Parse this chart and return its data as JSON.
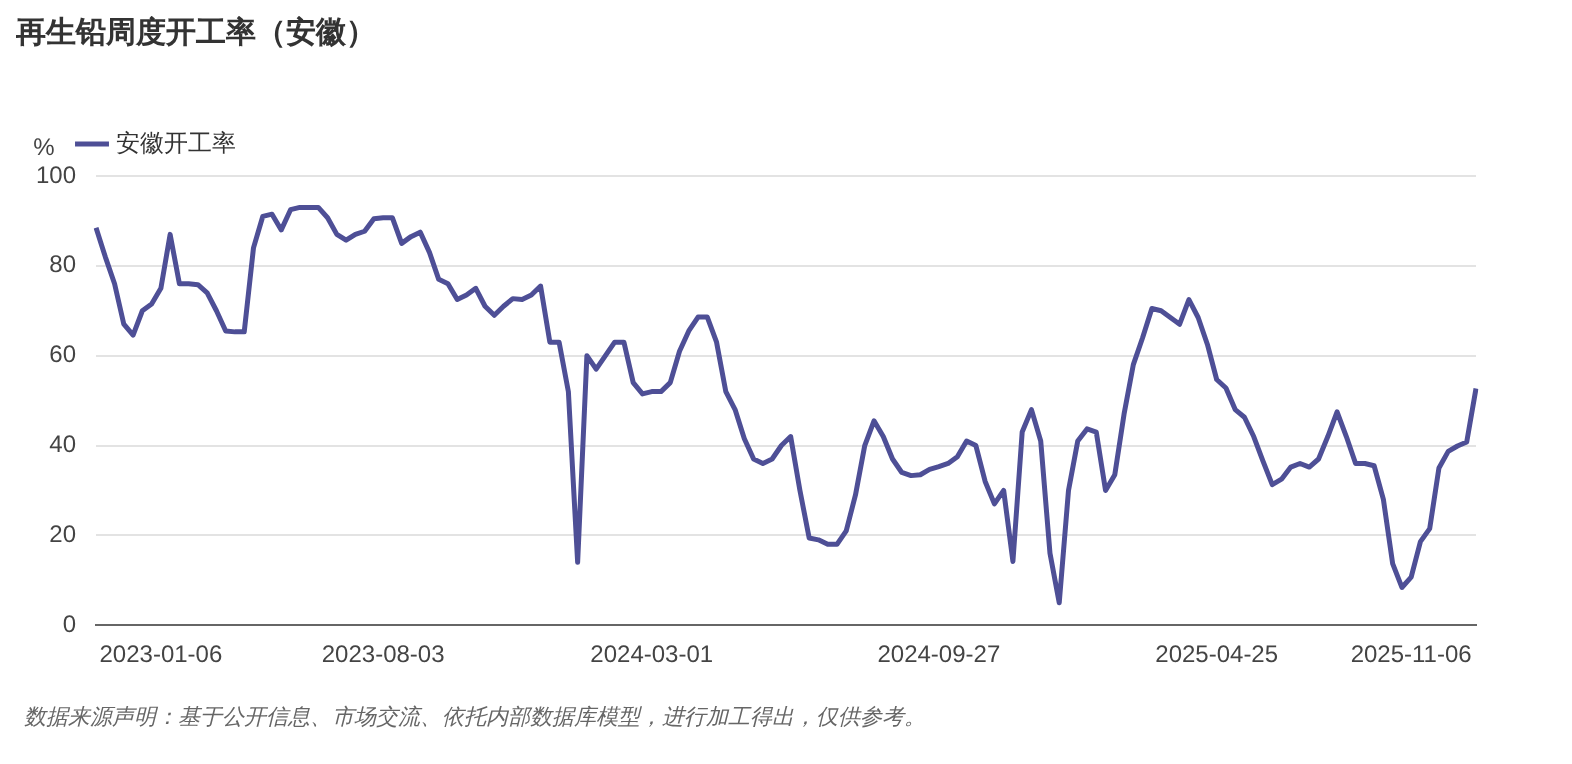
{
  "chart_data": {
    "type": "line",
    "title": "再生铅周度开工率（安徽）",
    "ylabel": "%",
    "categories": [
      null,
      null,
      null,
      null,
      null,
      null,
      null,
      "2023-01-06",
      null,
      null,
      null,
      null,
      null,
      null,
      null,
      null,
      null,
      null,
      null,
      null,
      null,
      null,
      null,
      null,
      null,
      null,
      null,
      null,
      null,
      null,
      null,
      "2023-08-03",
      null,
      null,
      null,
      null,
      null,
      null,
      null,
      null,
      null,
      null,
      null,
      null,
      null,
      null,
      null,
      null,
      null,
      null,
      null,
      null,
      null,
      null,
      null,
      null,
      null,
      null,
      null,
      null,
      "2024-03-01",
      null,
      null,
      null,
      null,
      null,
      null,
      null,
      null,
      null,
      null,
      null,
      null,
      null,
      null,
      null,
      null,
      null,
      null,
      null,
      null,
      null,
      null,
      null,
      null,
      null,
      null,
      null,
      null,
      null,
      null,
      "2024-09-27",
      null,
      null,
      null,
      null,
      null,
      null,
      null,
      null,
      null,
      null,
      null,
      null,
      null,
      null,
      null,
      null,
      null,
      null,
      null,
      null,
      null,
      null,
      null,
      null,
      null,
      null,
      null,
      null,
      null,
      "2025-04-25",
      null,
      null,
      null,
      null,
      null,
      null,
      null,
      null,
      null,
      null,
      null,
      null,
      null,
      null,
      null,
      null,
      null,
      null,
      null,
      null,
      "2025-11-06",
      null,
      null,
      null,
      null,
      null,
      null,
      null
    ],
    "series": [
      {
        "name": "安徽开工率",
        "color": "#4e4f96",
        "values": [
          88.5,
          82,
          76,
          67,
          64.6,
          70,
          71.5,
          75,
          87,
          76,
          76,
          75.8,
          74,
          70,
          65.5,
          65.3,
          65.3,
          84,
          91,
          91.5,
          88,
          92.5,
          93,
          93,
          93,
          90.7,
          87,
          85.7,
          87,
          87.7,
          90.5,
          90.7,
          90.7,
          85,
          86.5,
          87.5,
          83,
          77,
          76,
          72.5,
          73.5,
          75,
          71,
          69,
          71,
          72.7,
          72.5,
          73.5,
          75.5,
          63,
          63,
          52,
          14,
          60,
          57,
          60,
          63,
          63,
          54,
          51.5,
          52,
          52,
          54,
          61,
          65.5,
          68.6,
          68.6,
          63,
          52,
          48,
          41.5,
          37,
          36,
          37,
          40,
          42,
          30,
          19.4,
          19,
          18,
          18,
          21,
          29,
          40,
          45.5,
          42,
          37,
          34,
          33.3,
          33.5,
          34.7,
          35.3,
          36,
          37.5,
          41,
          40,
          32,
          27,
          30,
          14.2,
          43,
          48,
          41,
          16,
          5,
          30,
          41,
          43.7,
          43,
          30,
          33.5,
          47,
          58,
          64,
          70.5,
          70,
          68.5,
          67,
          72.5,
          68.5,
          62.5,
          54.7,
          52.8,
          48,
          46.3,
          42,
          36.5,
          31.3,
          32.5,
          35.2,
          36,
          35.2,
          37,
          42,
          47.5,
          42,
          36,
          36,
          35.5,
          28,
          13.7,
          8.4,
          10.7,
          18.6,
          21.5,
          35,
          38.7,
          39.9,
          40.8,
          52.7
        ]
      }
    ],
    "ylim": [
      0,
      100
    ],
    "yticks": [
      0,
      20,
      40,
      60,
      80,
      100
    ],
    "grid": "y",
    "legend": "top left",
    "marker": "none",
    "line_style": "solid",
    "annotations": [
      "数据来源声明：基于公开信息、市场交流、依托内部数据库模型，进行加工得出，仅供参考。"
    ]
  }
}
